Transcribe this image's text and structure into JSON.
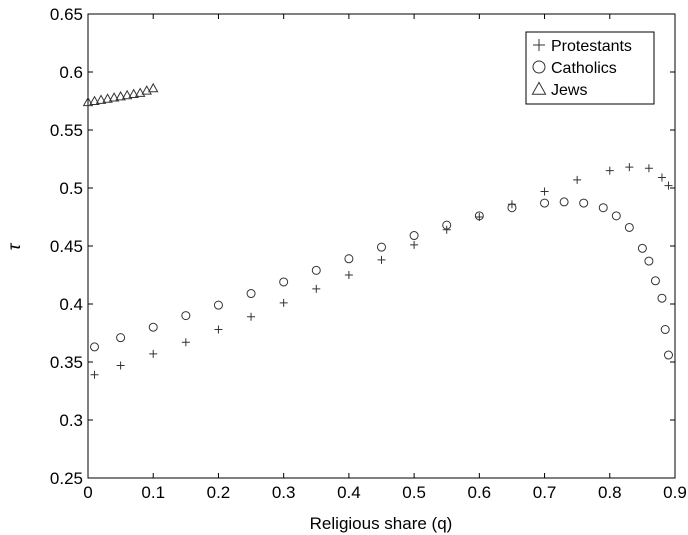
{
  "chart_data": {
    "type": "scatter",
    "xlabel": "Religious share (q)",
    "ylabel": "τ",
    "xlim": [
      0,
      0.9
    ],
    "ylim": [
      0.25,
      0.65
    ],
    "xticks": [
      "0",
      "0.1",
      "0.2",
      "0.3",
      "0.4",
      "0.5",
      "0.6",
      "0.7",
      "0.8",
      "0.9"
    ],
    "yticks": [
      "0.25",
      "0.3",
      "0.35",
      "0.4",
      "0.45",
      "0.5",
      "0.55",
      "0.6",
      "0.65"
    ],
    "grid": false,
    "legend_position": "top-right",
    "series": [
      {
        "name": "Protestants",
        "marker": "plus",
        "x": [
          0.01,
          0.05,
          0.1,
          0.15,
          0.2,
          0.25,
          0.3,
          0.35,
          0.4,
          0.45,
          0.5,
          0.55,
          0.6,
          0.65,
          0.7,
          0.75,
          0.8,
          0.83,
          0.86,
          0.88,
          0.89
        ],
        "y": [
          0.339,
          0.347,
          0.357,
          0.367,
          0.378,
          0.389,
          0.401,
          0.413,
          0.425,
          0.438,
          0.451,
          0.464,
          0.475,
          0.486,
          0.497,
          0.507,
          0.515,
          0.518,
          0.517,
          0.509,
          0.502
        ]
      },
      {
        "name": "Catholics",
        "marker": "circle",
        "x": [
          0.01,
          0.05,
          0.1,
          0.15,
          0.2,
          0.25,
          0.3,
          0.35,
          0.4,
          0.45,
          0.5,
          0.55,
          0.6,
          0.65,
          0.7,
          0.73,
          0.76,
          0.79,
          0.81,
          0.83,
          0.85,
          0.86,
          0.87,
          0.88,
          0.885,
          0.89
        ],
        "y": [
          0.363,
          0.371,
          0.38,
          0.39,
          0.399,
          0.409,
          0.419,
          0.429,
          0.439,
          0.449,
          0.459,
          0.468,
          0.476,
          0.483,
          0.487,
          0.488,
          0.487,
          0.483,
          0.476,
          0.466,
          0.448,
          0.437,
          0.42,
          0.405,
          0.378,
          0.356
        ]
      },
      {
        "name": "Jews",
        "marker": "triangle",
        "x": [
          0.0,
          0.01,
          0.02,
          0.03,
          0.04,
          0.05,
          0.06,
          0.07,
          0.08,
          0.09,
          0.1
        ],
        "y": [
          0.574,
          0.575,
          0.576,
          0.577,
          0.578,
          0.579,
          0.58,
          0.581,
          0.582,
          0.584,
          0.586
        ]
      }
    ]
  }
}
